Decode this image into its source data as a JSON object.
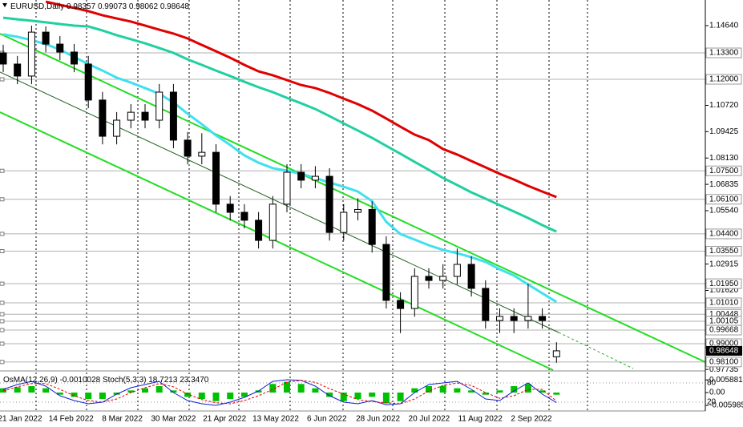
{
  "chart_data": [
    {
      "type": "candlestick",
      "title": "EURUSD,Daily",
      "open": [
        1.133,
        1.1275,
        1.1216,
        1.1432,
        1.1373,
        1.1334,
        1.1275,
        1.1098,
        1.092,
        1.0999,
        1.1038,
        1.0999,
        1.1137,
        1.0901,
        1.0822,
        1.0841,
        1.0586,
        1.0546,
        1.0507,
        1.0408,
        1.0586,
        1.0743,
        1.0704,
        1.0723,
        1.0447,
        1.0546,
        1.056,
        1.0388,
        1.0113,
        1.0073,
        1.0231,
        1.0211,
        1.0231,
        1.029,
        1.0172,
        1.0014,
        1.0034,
        1.0014,
        1.0034,
        0.98357
      ],
      "high": [
        1.137,
        1.1315,
        1.1464,
        1.146,
        1.1413,
        1.1374,
        1.1315,
        1.1138,
        1.1039,
        1.1078,
        1.1078,
        1.1177,
        1.1177,
        1.0941,
        1.0935,
        1.0881,
        1.0626,
        1.0586,
        1.0547,
        1.0626,
        1.0783,
        1.0783,
        1.0773,
        1.0763,
        1.0586,
        1.0615,
        1.06,
        1.0428,
        1.0153,
        1.0271,
        1.0271,
        1.0291,
        1.0368,
        1.033,
        1.0212,
        1.0074,
        1.0074,
        1.0195,
        1.0074,
        0.99073
      ],
      "low": [
        1.1235,
        1.1176,
        1.1176,
        1.1333,
        1.1294,
        1.1235,
        1.1058,
        1.088,
        1.088,
        1.0959,
        1.0959,
        1.0959,
        1.0861,
        1.0782,
        1.0782,
        1.0546,
        1.0506,
        1.0467,
        1.0368,
        1.0368,
        1.0546,
        1.0664,
        1.0664,
        1.0407,
        1.0407,
        1.0506,
        1.0348,
        1.0073,
        0.9952,
        1.0033,
        1.0171,
        1.0171,
        1.0191,
        1.0132,
        0.9974,
        0.9952,
        0.9952,
        0.9974,
        0.9974,
        0.98062
      ],
      "close": [
        1.1275,
        1.1216,
        1.1432,
        1.1373,
        1.1334,
        1.1275,
        1.1098,
        1.092,
        1.0999,
        1.1038,
        1.0999,
        1.1137,
        1.0901,
        1.0822,
        1.0841,
        1.0586,
        1.0546,
        1.0507,
        1.0408,
        1.0586,
        1.0743,
        1.0704,
        1.0723,
        1.0447,
        1.0546,
        1.056,
        1.0388,
        1.0113,
        1.0073,
        1.0231,
        1.0211,
        1.0231,
        1.029,
        1.0172,
        1.0014,
        1.0034,
        1.0014,
        1.0034,
        1.0014,
        0.98648
      ],
      "series": [
        {
          "color": "#e00000",
          "values": [
            null,
            null,
            null,
            1.1582,
            1.1566,
            1.1551,
            1.1535,
            1.1515,
            1.1499,
            1.1484,
            1.1464,
            1.1444,
            1.1425,
            1.1401,
            1.1369,
            1.1338,
            1.1306,
            1.1271,
            1.1239,
            1.122,
            1.1196,
            1.1172,
            1.1157,
            1.1133,
            1.1105,
            1.1078,
            1.1046,
            1.1007,
            1.0967,
            1.0928,
            1.0901,
            1.0857,
            1.083,
            1.0798,
            1.0767,
            1.0735,
            1.0707,
            1.0676,
            1.0648,
            1.0621
          ]
        },
        {
          "color": "#20d0a0",
          "values": [
            1.1503,
            1.1495,
            1.1488,
            1.148,
            1.1472,
            1.1464,
            1.146,
            1.144,
            1.1417,
            1.1397,
            1.1377,
            1.1354,
            1.133,
            1.1298,
            1.1271,
            1.1243,
            1.1216,
            1.1188,
            1.1161,
            1.1137,
            1.1109,
            1.1082,
            1.1054,
            1.1019,
            1.0983,
            1.0948,
            1.0912,
            1.0873,
            1.0834,
            1.0794,
            1.0755,
            1.0715,
            1.068,
            1.0644,
            1.0613,
            1.0581,
            1.055,
            1.0518,
            1.0483,
            1.0451
          ]
        },
        {
          "color": "#40e0f0",
          "values": [
            1.1421,
            1.1409,
            1.1393,
            1.1373,
            1.1346,
            1.131,
            1.1275,
            1.1243,
            1.1208,
            1.1184,
            1.1157,
            1.1129,
            1.1086,
            1.1031,
            1.0979,
            1.0924,
            1.0877,
            1.0826,
            1.079,
            1.0763,
            1.0751,
            1.0735,
            1.0715,
            1.0692,
            1.0672,
            1.0648,
            1.0601,
            1.0499,
            1.0439,
            1.0412,
            1.0384,
            1.0361,
            1.0345,
            1.0325,
            1.0302,
            1.0266,
            1.0235,
            1.0191,
            1.0148,
            1.0105
          ]
        }
      ],
      "ylim": [
        0.977,
        1.159
      ],
      "yticks": [
        {
          "value": 1.1464,
          "label": "1.14640"
        },
        {
          "value": 1.1072,
          "label": "1.10720"
        },
        {
          "value": 1.09425,
          "label": "1.09425"
        },
        {
          "value": 1.0813,
          "label": "1.08130"
        },
        {
          "value": 1.06835,
          "label": "1.06835"
        },
        {
          "value": 1.0554,
          "label": "1.05540"
        },
        {
          "value": 1.04245,
          "label": "1.04245"
        },
        {
          "value": 1.02915,
          "label": "1.02915"
        },
        {
          "value": 1.0162,
          "label": "1.01620"
        },
        {
          "value": 0.97735,
          "label": "0.97735"
        }
      ],
      "levels": [
        {
          "value": 1.133,
          "label": "1.13300"
        },
        {
          "value": 1.12,
          "label": "1.12000"
        },
        {
          "value": 1.075,
          "label": "1.07500"
        },
        {
          "value": 1.061,
          "label": "1.06100"
        },
        {
          "value": 1.044,
          "label": "1.04400"
        },
        {
          "value": 1.0355,
          "label": "1.03550"
        },
        {
          "value": 1.0195,
          "label": "1.01950"
        },
        {
          "value": 1.0101,
          "label": "1.01010"
        },
        1.00448,
        1.00105,
        0.99668,
        {
          "value": 0.99,
          "label": "0.99000"
        },
        {
          "value": 0.981,
          "label": "0.98100"
        }
      ],
      "x_labels": [
        "21 Jan 2022",
        "14 Feb 2022",
        "8 Mar 2022",
        "30 Mar 2022",
        "21 Apr 2022",
        "13 May 2022",
        "6 Jun 2022",
        "28 Jun 2022",
        "20 Jul 2022",
        "11 Aug 2022",
        "2 Sep 2022"
      ]
    },
    {
      "type": "indicator",
      "title": "OsMA(12,26,9)",
      "title2": "Stoch(5,3,3)",
      "values": [
        0.002,
        0.0025,
        0.003,
        0.002,
        -0.001,
        -0.002,
        -0.003,
        -0.003,
        -0.001,
        0.001,
        0.002,
        0.003,
        0.001,
        -0.002,
        -0.003,
        -0.004,
        -0.003,
        -0.002,
        0.001,
        0.004,
        0.005,
        0.004,
        0.002,
        -0.002,
        -0.004,
        -0.003,
        -0.002,
        -0.005,
        -0.004,
        0.002,
        0.003,
        0.003,
        0.002,
        0.001,
        -0.001,
        0.001,
        0.003,
        0.004,
        0.001,
        -0.0010028
      ],
      "color": "#00c000",
      "series": [
        {
          "color": "#1020d0",
          "axis": "y2",
          "values": [
            60,
            75,
            85,
            70,
            40,
            25,
            15,
            20,
            45,
            65,
            75,
            85,
            50,
            25,
            15,
            10,
            20,
            35,
            55,
            85,
            90,
            88,
            70,
            40,
            20,
            15,
            25,
            12,
            15,
            50,
            75,
            80,
            85,
            60,
            30,
            25,
            55,
            80,
            45,
            18.7213
          ]
        },
        {
          "color": "#e00000",
          "axis": "y2",
          "values": [
            55,
            68,
            78,
            78,
            60,
            40,
            25,
            20,
            30,
            50,
            65,
            78,
            68,
            45,
            28,
            18,
            15,
            25,
            40,
            60,
            82,
            88,
            82,
            62,
            45,
            28,
            22,
            18,
            15,
            30,
            55,
            72,
            80,
            72,
            50,
            32,
            40,
            60,
            60,
            23.347
          ],
          "value_labels": [
            null,
            null,
            null,
            null,
            null,
            null,
            null,
            null,
            null,
            null,
            null,
            null,
            null,
            null,
            null,
            null,
            null,
            null,
            null,
            null,
            null,
            null,
            null,
            null,
            null,
            null,
            null,
            null,
            null,
            null,
            null,
            null,
            null,
            null,
            null,
            null,
            null,
            null,
            null,
            "23.3470"
          ]
        }
      ],
      "ylim": [
        -0.0082,
        0.0082
      ],
      "yticks": [
        0.0058815,
        {
          "value": 0,
          "label": "0.00"
        },
        -0.005985
      ],
      "y2lim": [
        0,
        100
      ],
      "y2ticks": [
        80,
        20
      ]
    }
  ]
}
